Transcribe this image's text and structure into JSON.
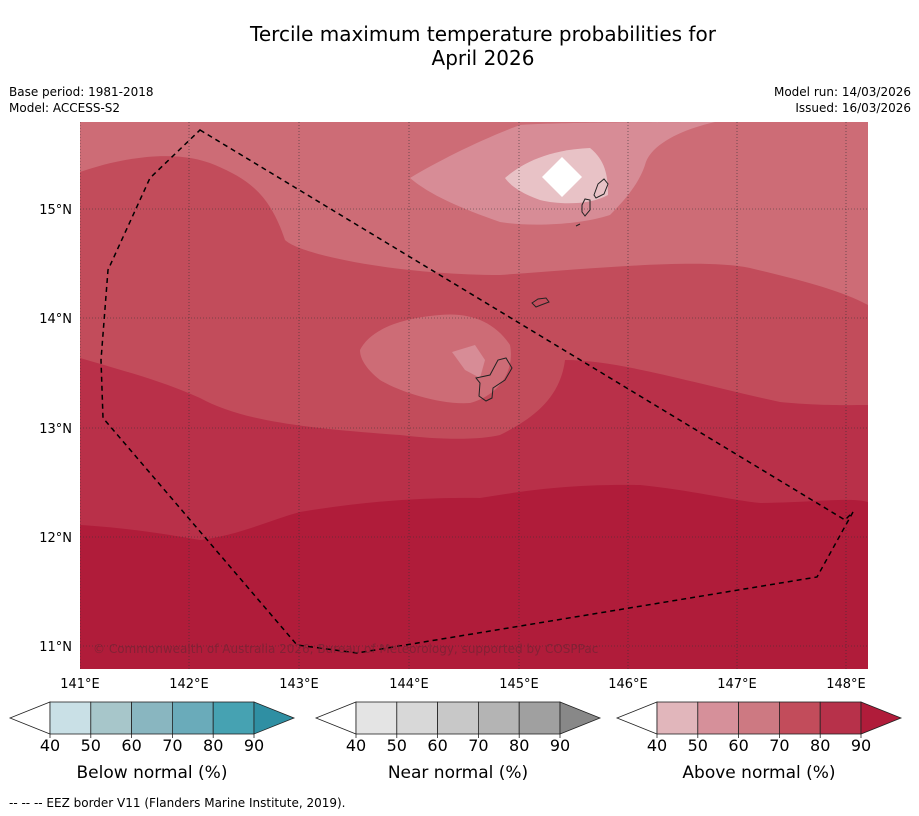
{
  "header": {
    "title_line1": "Tercile maximum temperature probabilities for",
    "title_line2": "April 2026",
    "base_period": "Base period: 1981-2018",
    "model": "Model: ACCESS-S2",
    "model_run": "Model run: 14/03/2026",
    "issued": "Issued: 16/03/2026"
  },
  "map": {
    "lat_labels": [
      "15°N",
      "14°N",
      "13°N",
      "12°N",
      "11°N"
    ],
    "lon_labels": [
      "141°E",
      "142°E",
      "143°E",
      "144°E",
      "145°E",
      "146°E",
      "147°E",
      "148°E"
    ],
    "copyright": "© Commonwealth of Australia 2026, Bureau of Meteorology, supported by COSPPac"
  },
  "colorbars": [
    {
      "label": "Below normal (%)",
      "ticks": [
        "40",
        "50",
        "60",
        "70",
        "80",
        "90"
      ],
      "colors": [
        "#ffffff",
        "#c9e0e6",
        "#a7c6ca",
        "#89b6c0",
        "#6aabba",
        "#46a2b2",
        "#2f8fa3"
      ]
    },
    {
      "label": "Near normal (%)",
      "ticks": [
        "40",
        "50",
        "60",
        "70",
        "80",
        "90"
      ],
      "colors": [
        "#ffffff",
        "#e4e4e4",
        "#d8d8d8",
        "#c8c8c8",
        "#b4b4b4",
        "#a0a0a0",
        "#888888"
      ]
    },
    {
      "label": "Above normal (%)",
      "ticks": [
        "40",
        "50",
        "60",
        "70",
        "80",
        "90"
      ],
      "colors": [
        "#ffffff",
        "#e1b6bb",
        "#d6909a",
        "#cd7982",
        "#c24c5b",
        "#b7314a",
        "#b01c3a"
      ]
    }
  ],
  "footnote": "--  --  -- EEZ border V11 (Flanders Marine Institute, 2019)."
}
